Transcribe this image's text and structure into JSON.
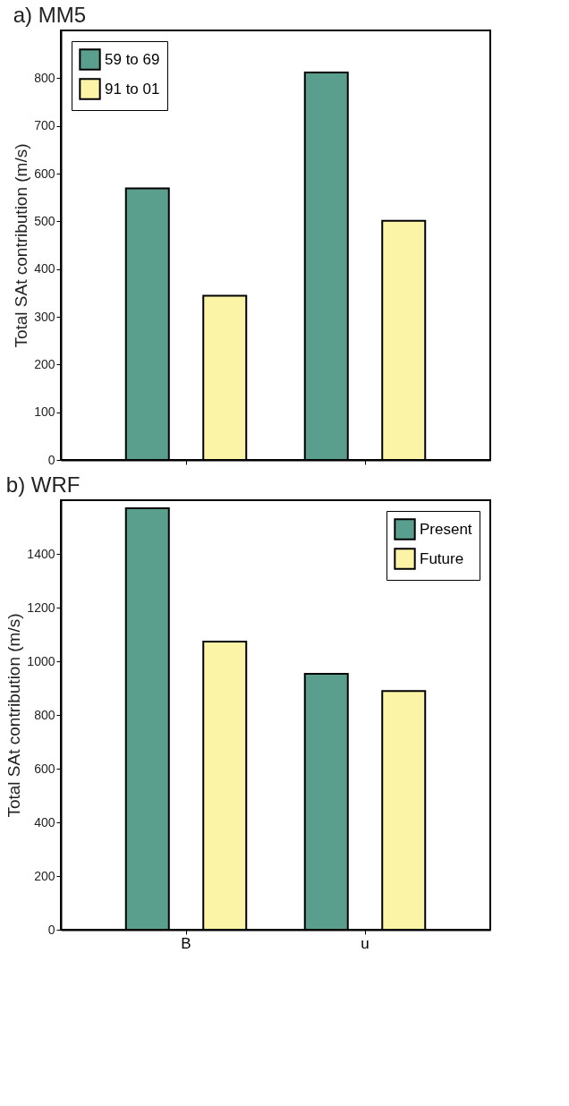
{
  "chart_data": [
    {
      "type": "bar",
      "title": "a) MM5",
      "ylabel": "Total SAt contribution (m/s)",
      "categories": [
        null,
        null
      ],
      "tick_labels": "y",
      "ylim": [
        0,
        900
      ],
      "yticks": [
        0,
        100,
        200,
        300,
        400,
        500,
        600,
        700,
        800
      ],
      "grid": false,
      "legend": "top left",
      "series": [
        {
          "name": "59 to 69",
          "color": "#5a9e8e",
          "values": [
            569,
            812
          ]
        },
        {
          "name": "91 to 01",
          "color": "#fbf3a5",
          "values": [
            344,
            501
          ]
        }
      ]
    },
    {
      "type": "bar",
      "title": "b) WRF",
      "ylabel": "Total SAt contribution (m/s)",
      "categories": [
        "B",
        "u"
      ],
      "ylim": [
        0,
        1600
      ],
      "yticks": [
        0,
        200,
        400,
        600,
        800,
        1000,
        1200,
        1400
      ],
      "grid": false,
      "legend": "top right",
      "series": [
        {
          "name": "Present",
          "color": "#5a9e8e",
          "values": [
            1570,
            953
          ]
        },
        {
          "name": "Future",
          "color": "#fbf3a5",
          "values": [
            1073,
            889
          ]
        }
      ]
    }
  ]
}
